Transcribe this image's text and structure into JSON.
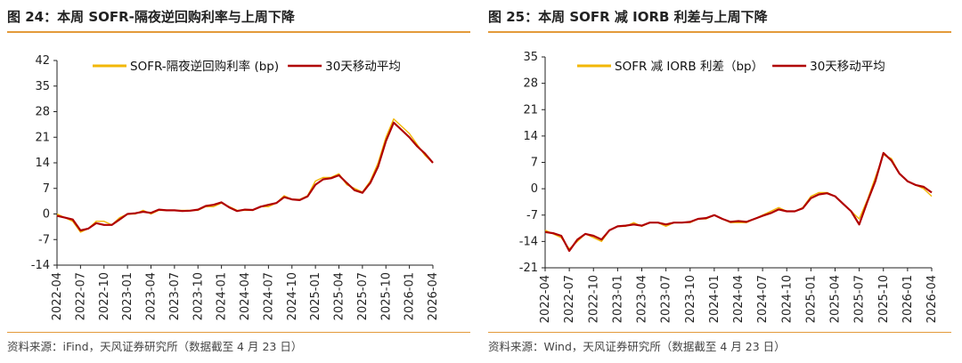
{
  "left_panel": {
    "title": "图 24：本周 SOFR-隔夜逆回购利率与上周下降",
    "source": "资料来源：iFind，天风证券研究所（数据截至 4 月 23 日）"
  },
  "right_panel": {
    "title": "图 25：本周 SOFR 减 IORB 利差与上周下降",
    "source": "资料来源：Wind，天风证券研究所（数据截至 4 月 23 日）"
  },
  "colors": {
    "raw": "#f2b705",
    "avg": "#b00000",
    "accent_rule": "#e39a3a"
  },
  "chart_data": [
    {
      "type": "line",
      "title": "图 24：本周 SOFR-隔夜逆回购利率与上周下降",
      "xlabel": "",
      "ylabel": "",
      "ylim": [
        -14,
        42
      ],
      "yticks": [
        "42",
        "35",
        "28",
        "21",
        "14",
        "7",
        "0",
        "-7",
        "-14"
      ],
      "xticks": [
        "2022-04",
        "2022-07",
        "2022-10",
        "2023-01",
        "2023-04",
        "2023-07",
        "2023-10",
        "2024-01",
        "2024-04",
        "2024-07",
        "2024-10",
        "2025-01",
        "2025-04",
        "2025-07",
        "2025-10",
        "2026-01",
        "2026-04"
      ],
      "legend_position": "top",
      "grid": false,
      "series": [
        {
          "name": "SOFR-隔夜逆回购利率 (bp)",
          "color": "#f2b705",
          "points": [
            [
              "2022-04",
              0
            ],
            [
              "2022-05",
              -1
            ],
            [
              "2022-06",
              -2
            ],
            [
              "2022-07",
              -5
            ],
            [
              "2022-08",
              -4
            ],
            [
              "2022-09",
              -2
            ],
            [
              "2022-10",
              -2
            ],
            [
              "2022-11",
              -3
            ],
            [
              "2022-12",
              -1
            ],
            [
              "2023-01",
              0
            ],
            [
              "2023-02",
              0
            ],
            [
              "2023-03",
              1
            ],
            [
              "2023-04",
              0
            ],
            [
              "2023-05",
              1
            ],
            [
              "2023-06",
              1
            ],
            [
              "2023-07",
              1
            ],
            [
              "2023-08",
              1
            ],
            [
              "2023-09",
              1
            ],
            [
              "2023-10",
              1
            ],
            [
              "2023-11",
              2
            ],
            [
              "2023-12",
              2
            ],
            [
              "2024-01",
              3
            ],
            [
              "2024-02",
              2
            ],
            [
              "2024-03",
              1
            ],
            [
              "2024-04",
              1
            ],
            [
              "2024-05",
              1
            ],
            [
              "2024-06",
              2
            ],
            [
              "2024-07",
              2
            ],
            [
              "2024-08",
              3
            ],
            [
              "2024-09",
              5
            ],
            [
              "2024-10",
              4
            ],
            [
              "2024-11",
              4
            ],
            [
              "2024-12",
              5
            ],
            [
              "2025-01",
              9
            ],
            [
              "2025-02",
              10
            ],
            [
              "2025-03",
              10
            ],
            [
              "2025-04",
              11
            ],
            [
              "2025-05",
              8
            ],
            [
              "2025-06",
              7
            ],
            [
              "2025-07",
              6
            ],
            [
              "2025-08",
              9
            ],
            [
              "2025-09",
              14
            ],
            [
              "2025-10",
              21
            ],
            [
              "2025-11",
              26
            ],
            [
              "2025-12",
              24
            ],
            [
              "2026-01",
              22
            ],
            [
              "2026-02",
              19
            ],
            [
              "2026-03",
              16
            ],
            [
              "2026-04",
              14
            ]
          ]
        },
        {
          "name": "30天移动平均",
          "color": "#b00000",
          "points": [
            [
              "2022-04",
              -0.5
            ],
            [
              "2022-05",
              -1
            ],
            [
              "2022-06",
              -1.5
            ],
            [
              "2022-07",
              -4.5
            ],
            [
              "2022-08",
              -4
            ],
            [
              "2022-09",
              -2.5
            ],
            [
              "2022-10",
              -3
            ],
            [
              "2022-11",
              -3
            ],
            [
              "2022-12",
              -1.5
            ],
            [
              "2023-01",
              0
            ],
            [
              "2023-02",
              0.2
            ],
            [
              "2023-03",
              0.6
            ],
            [
              "2023-04",
              0.3
            ],
            [
              "2023-05",
              1.2
            ],
            [
              "2023-06",
              1
            ],
            [
              "2023-07",
              1
            ],
            [
              "2023-08",
              0.8
            ],
            [
              "2023-09",
              0.9
            ],
            [
              "2023-10",
              1.2
            ],
            [
              "2023-11",
              2.2
            ],
            [
              "2023-12",
              2.5
            ],
            [
              "2024-01",
              3.2
            ],
            [
              "2024-02",
              1.8
            ],
            [
              "2024-03",
              0.8
            ],
            [
              "2024-04",
              1.2
            ],
            [
              "2024-05",
              1.1
            ],
            [
              "2024-06",
              2
            ],
            [
              "2024-07",
              2.5
            ],
            [
              "2024-08",
              3
            ],
            [
              "2024-09",
              4.6
            ],
            [
              "2024-10",
              4
            ],
            [
              "2024-11",
              3.8
            ],
            [
              "2024-12",
              4.8
            ],
            [
              "2025-01",
              8
            ],
            [
              "2025-02",
              9.5
            ],
            [
              "2025-03",
              9.8
            ],
            [
              "2025-04",
              10.6
            ],
            [
              "2025-05",
              8.5
            ],
            [
              "2025-06",
              6.5
            ],
            [
              "2025-07",
              5.8
            ],
            [
              "2025-08",
              8.5
            ],
            [
              "2025-09",
              13
            ],
            [
              "2025-10",
              20
            ],
            [
              "2025-11",
              25
            ],
            [
              "2025-12",
              23
            ],
            [
              "2026-01",
              21
            ],
            [
              "2026-02",
              18.5
            ],
            [
              "2026-03",
              16.5
            ],
            [
              "2026-04",
              14
            ]
          ]
        }
      ]
    },
    {
      "type": "line",
      "title": "图 25：本周 SOFR 减 IORB 利差与上周下降",
      "xlabel": "",
      "ylabel": "",
      "ylim": [
        -21,
        35
      ],
      "yticks": [
        "35",
        "28",
        "21",
        "14",
        "7",
        "0",
        "-7",
        "-14",
        "-21"
      ],
      "xticks": [
        "2022-04",
        "2022-07",
        "2022-10",
        "2023-01",
        "2023-04",
        "2023-07",
        "2023-10",
        "2024-01",
        "2024-04",
        "2024-07",
        "2024-10",
        "2025-01",
        "2025-04",
        "2025-07",
        "2025-10",
        "2026-01",
        "2026-04"
      ],
      "legend_position": "top",
      "grid": false,
      "series": [
        {
          "name": "SOFR 减 IORB 利差（bp）",
          "color": "#f2b705",
          "points": [
            [
              "2022-04",
              -11
            ],
            [
              "2022-05",
              -12
            ],
            [
              "2022-06",
              -13
            ],
            [
              "2022-07",
              -16
            ],
            [
              "2022-08",
              -14
            ],
            [
              "2022-09",
              -12
            ],
            [
              "2022-10",
              -13
            ],
            [
              "2022-11",
              -14
            ],
            [
              "2022-12",
              -11
            ],
            [
              "2023-01",
              -10
            ],
            [
              "2023-02",
              -10
            ],
            [
              "2023-03",
              -9
            ],
            [
              "2023-04",
              -10
            ],
            [
              "2023-05",
              -9
            ],
            [
              "2023-06",
              -9
            ],
            [
              "2023-07",
              -10
            ],
            [
              "2023-08",
              -9
            ],
            [
              "2023-09",
              -9
            ],
            [
              "2023-10",
              -9
            ],
            [
              "2023-11",
              -8
            ],
            [
              "2023-12",
              -8
            ],
            [
              "2024-01",
              -7
            ],
            [
              "2024-02",
              -8
            ],
            [
              "2024-03",
              -9
            ],
            [
              "2024-04",
              -9
            ],
            [
              "2024-05",
              -9
            ],
            [
              "2024-06",
              -8
            ],
            [
              "2024-07",
              -7
            ],
            [
              "2024-08",
              -6
            ],
            [
              "2024-09",
              -5
            ],
            [
              "2024-10",
              -6
            ],
            [
              "2024-11",
              -6
            ],
            [
              "2024-12",
              -5
            ],
            [
              "2025-01",
              -2
            ],
            [
              "2025-02",
              -1
            ],
            [
              "2025-03",
              -1
            ],
            [
              "2025-04",
              -2
            ],
            [
              "2025-05",
              -4
            ],
            [
              "2025-06",
              -6
            ],
            [
              "2025-07",
              -8
            ],
            [
              "2025-08",
              -3
            ],
            [
              "2025-09",
              3
            ],
            [
              "2025-10",
              9
            ],
            [
              "2025-11",
              8
            ],
            [
              "2025-12",
              4
            ],
            [
              "2026-01",
              2
            ],
            [
              "2026-02",
              1
            ],
            [
              "2026-03",
              0
            ],
            [
              "2026-04",
              -2
            ]
          ]
        },
        {
          "name": "30天移动平均",
          "color": "#b00000",
          "points": [
            [
              "2022-04",
              -11.5
            ],
            [
              "2022-05",
              -11.8
            ],
            [
              "2022-06",
              -12.5
            ],
            [
              "2022-07",
              -16.5
            ],
            [
              "2022-08",
              -13.5
            ],
            [
              "2022-09",
              -12
            ],
            [
              "2022-10",
              -12.5
            ],
            [
              "2022-11",
              -13.5
            ],
            [
              "2022-12",
              -11
            ],
            [
              "2023-01",
              -10
            ],
            [
              "2023-02",
              -9.8
            ],
            [
              "2023-03",
              -9.5
            ],
            [
              "2023-04",
              -9.8
            ],
            [
              "2023-05",
              -9
            ],
            [
              "2023-06",
              -9
            ],
            [
              "2023-07",
              -9.5
            ],
            [
              "2023-08",
              -9
            ],
            [
              "2023-09",
              -9
            ],
            [
              "2023-10",
              -8.8
            ],
            [
              "2023-11",
              -8
            ],
            [
              "2023-12",
              -7.8
            ],
            [
              "2024-01",
              -7
            ],
            [
              "2024-02",
              -8
            ],
            [
              "2024-03",
              -8.8
            ],
            [
              "2024-04",
              -8.6
            ],
            [
              "2024-05",
              -8.8
            ],
            [
              "2024-06",
              -8
            ],
            [
              "2024-07",
              -7.2
            ],
            [
              "2024-08",
              -6.5
            ],
            [
              "2024-09",
              -5.5
            ],
            [
              "2024-10",
              -6
            ],
            [
              "2024-11",
              -6
            ],
            [
              "2024-12",
              -5.2
            ],
            [
              "2025-01",
              -2.5
            ],
            [
              "2025-02",
              -1.5
            ],
            [
              "2025-03",
              -1.2
            ],
            [
              "2025-04",
              -2
            ],
            [
              "2025-05",
              -4
            ],
            [
              "2025-06",
              -6
            ],
            [
              "2025-07",
              -9.5
            ],
            [
              "2025-08",
              -3.5
            ],
            [
              "2025-09",
              2
            ],
            [
              "2025-10",
              9.5
            ],
            [
              "2025-11",
              7.5
            ],
            [
              "2025-12",
              4
            ],
            [
              "2026-01",
              2
            ],
            [
              "2026-02",
              1
            ],
            [
              "2026-03",
              0.5
            ],
            [
              "2026-04",
              -1
            ]
          ]
        }
      ]
    }
  ]
}
